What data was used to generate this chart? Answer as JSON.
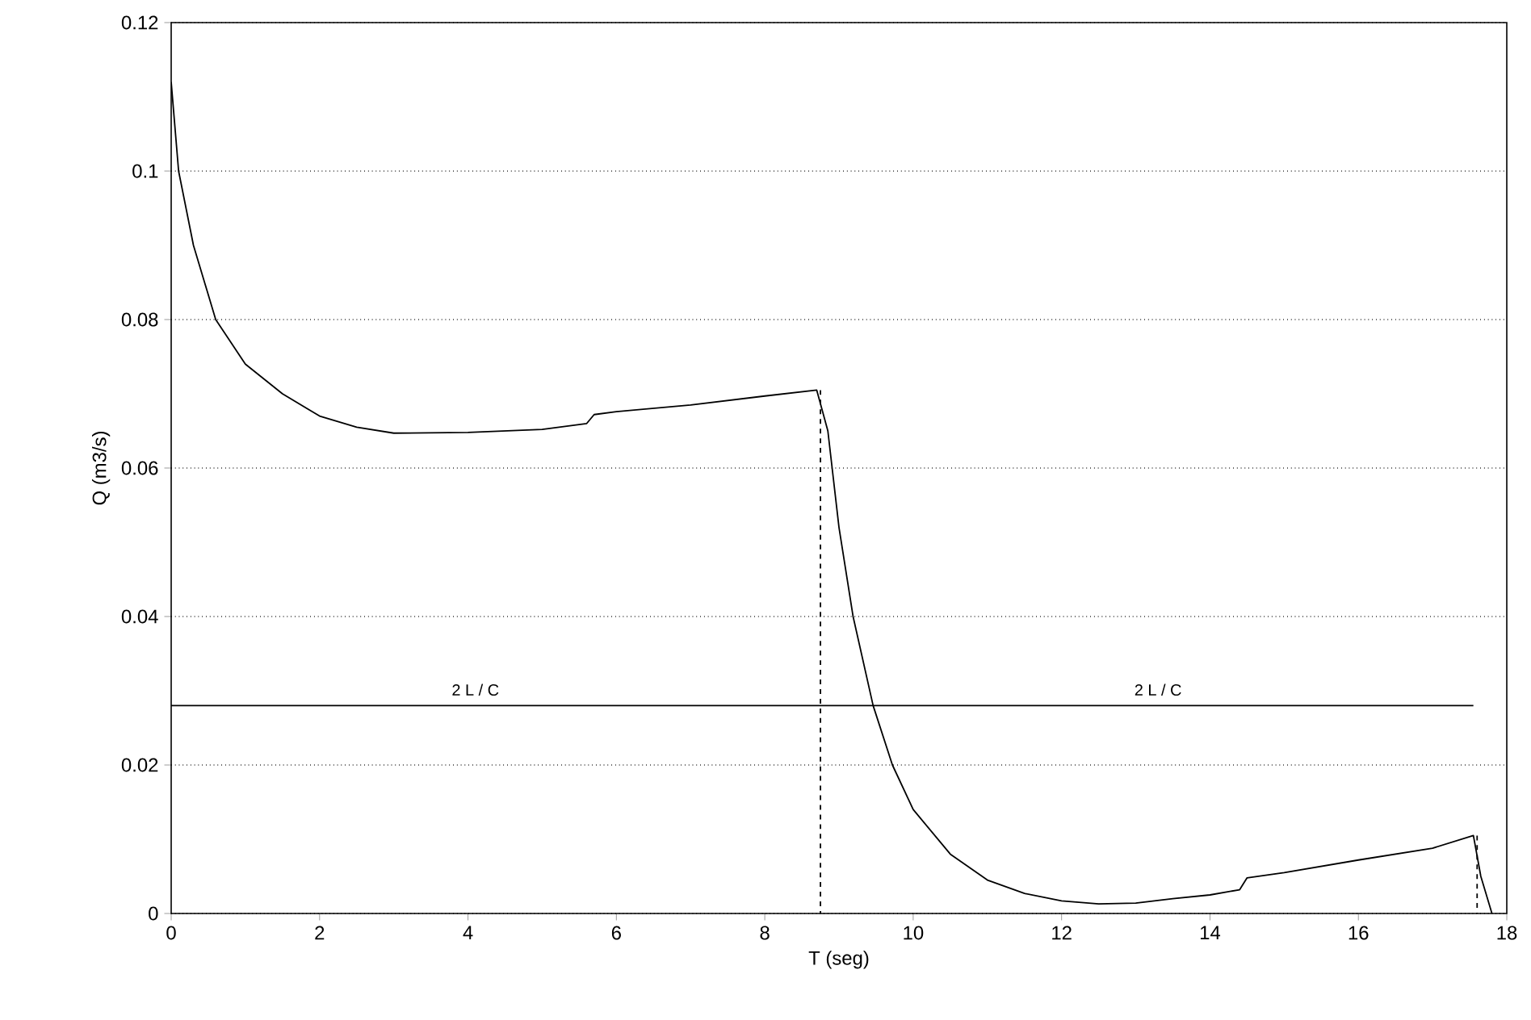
{
  "chart_data": {
    "type": "line",
    "xlabel": "T (seg)",
    "ylabel": "Q (m3/s)",
    "xlim": [
      0,
      18
    ],
    "ylim": [
      0,
      0.12
    ],
    "xticks": [
      0,
      2,
      4,
      6,
      8,
      10,
      12,
      14,
      16,
      18
    ],
    "yticks": [
      0,
      0.02,
      0.04,
      0.06,
      0.08,
      0.1,
      0.12
    ],
    "grid": "y",
    "marker": "none",
    "series": [
      {
        "color": "#000000",
        "line_style": "solid",
        "x": [
          0,
          0.1,
          0.3,
          0.6,
          1,
          1.5,
          2,
          2.5,
          3,
          4,
          5,
          5.6,
          5.7,
          6,
          7,
          8,
          8.7,
          8.85,
          9,
          9.19,
          9.46,
          9.72,
          10,
          10.5,
          11,
          11.5,
          12,
          12.5,
          13,
          13.5,
          14,
          14.4,
          14.5,
          15,
          16,
          17,
          17.55,
          17.65,
          17.8
        ],
        "values": [
          0.112,
          0.1,
          0.09,
          0.08,
          0.074,
          0.07,
          0.067,
          0.0655,
          0.0647,
          0.0648,
          0.0652,
          0.066,
          0.0672,
          0.0676,
          0.0685,
          0.0697,
          0.0705,
          0.065,
          0.052,
          0.04,
          0.028,
          0.02,
          0.014,
          0.008,
          0.0045,
          0.0027,
          0.0017,
          0.0013,
          0.0014,
          0.002,
          0.0025,
          0.0032,
          0.0048,
          0.0055,
          0.0072,
          0.0088,
          0.0105,
          0.005,
          0
        ]
      },
      {
        "color": "#000000",
        "line_style": "solid",
        "x": [
          0,
          17.55
        ],
        "values": [
          0.028,
          0.028
        ]
      },
      {
        "color": "#000000",
        "line_style": "dashed",
        "x": [
          8.75,
          8.75
        ],
        "values": [
          0.0705,
          0
        ]
      },
      {
        "color": "#000000",
        "line_style": "dashed",
        "x": [
          17.6,
          17.6
        ],
        "values": [
          0.0105,
          0
        ]
      }
    ],
    "annotations": [
      {
        "text": "2 L / C",
        "x": 4.1,
        "y": 0.028
      },
      {
        "text": "2 L / C",
        "x": 13.3,
        "y": 0.028
      }
    ]
  }
}
